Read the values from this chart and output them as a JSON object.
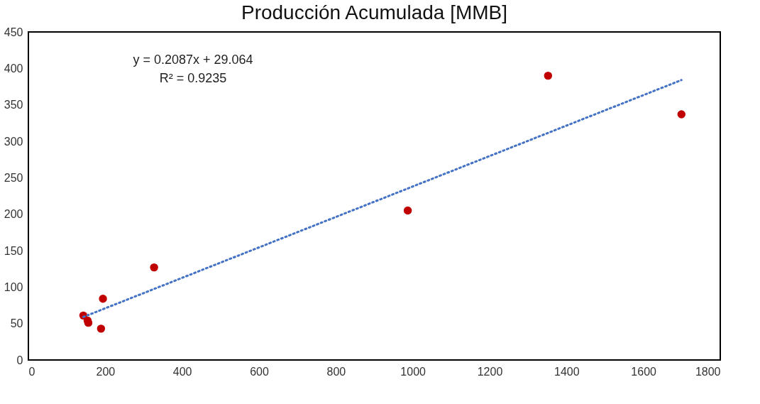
{
  "chart_data": {
    "type": "scatter",
    "title": "Producción Acumulada [MMB]",
    "xlim": [
      0,
      1800
    ],
    "xticks": [
      0,
      200,
      400,
      600,
      800,
      1000,
      1200,
      1400,
      1600,
      1800
    ],
    "ylim": [
      0,
      450
    ],
    "yticks": [
      0,
      50,
      100,
      150,
      200,
      250,
      300,
      350,
      400,
      450
    ],
    "grid": false,
    "marker": "circle",
    "annotations": [
      "y = 0.2087x + 29.064",
      "R² = 0.9235"
    ],
    "series": [
      {
        "color": "#c00000",
        "x": [
          143,
          154,
          156,
          189,
          194,
          327,
          987,
          1352,
          1699
        ],
        "values": [
          61,
          54,
          51,
          43,
          84,
          127,
          205,
          390,
          337
        ]
      },
      {
        "type": "line",
        "color": "#4472c4",
        "line_style": "dotted",
        "marker": "none",
        "x": [
          143,
          1699
        ],
        "values": [
          59,
          384
        ]
      }
    ]
  }
}
